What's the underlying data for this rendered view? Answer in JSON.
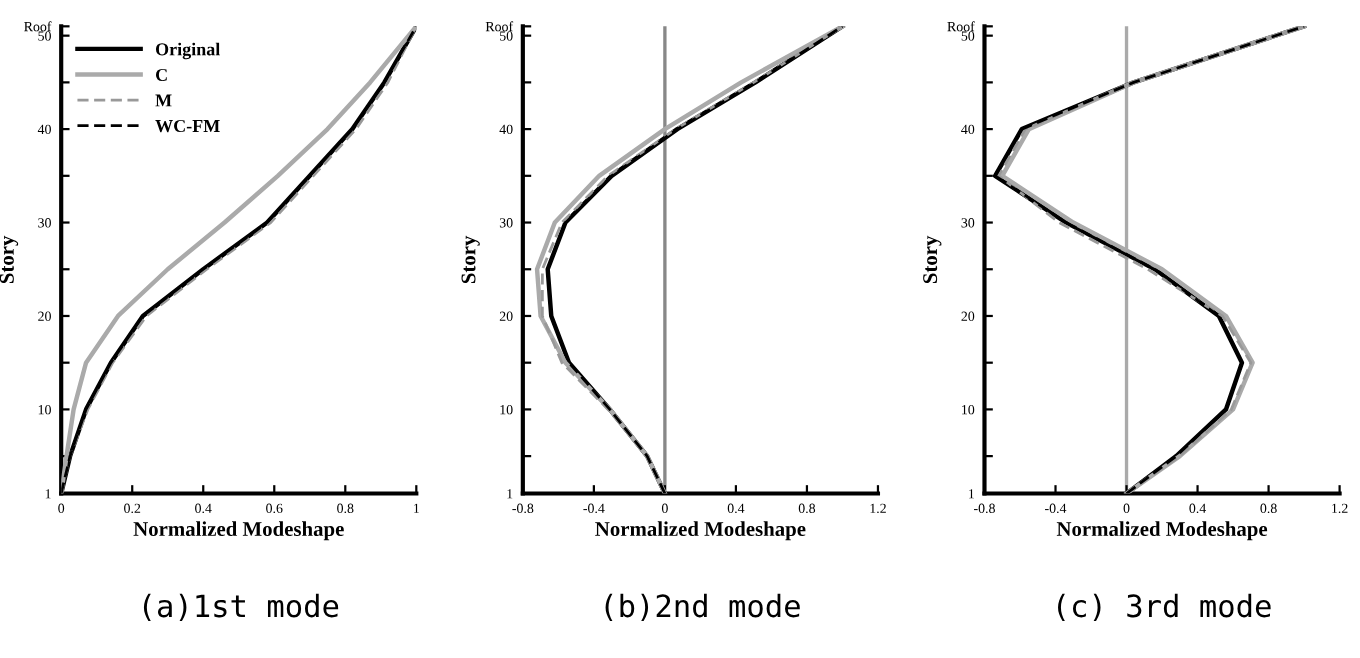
{
  "chart_data": [
    {
      "type": "line",
      "title": "(a)1st mode",
      "xlabel": "Normalized Modeshape",
      "ylabel": "Story",
      "xlim": [
        0,
        1
      ],
      "xticks": [
        0,
        0.2,
        0.4,
        0.6,
        0.8,
        1
      ],
      "ylim": [
        1,
        51
      ],
      "yticks": [
        1,
        {
          "value": 5,
          "label": null
        },
        10,
        {
          "value": 15,
          "label": null
        },
        20,
        {
          "value": 25,
          "label": null
        },
        30,
        {
          "value": 35,
          "label": null
        },
        40,
        {
          "value": 45,
          "label": null
        },
        50,
        {
          "value": 51,
          "label": "Roof"
        }
      ],
      "legend": "top left",
      "grid": false,
      "series": [
        {
          "name": "Original",
          "color": "#000000",
          "line_style": "solid",
          "x": [
            0,
            0.025,
            0.07,
            0.14,
            0.23,
            0.4,
            0.58,
            0.7,
            0.82,
            0.91,
            1
          ],
          "values": [
            1,
            5,
            10,
            15,
            20,
            25,
            30,
            35,
            40,
            45,
            51
          ]
        },
        {
          "name": "C",
          "color": "#aaaaaa",
          "line_style": "solid",
          "x": [
            0,
            0.015,
            0.035,
            0.07,
            0.16,
            0.3,
            0.46,
            0.61,
            0.75,
            0.87,
            1
          ],
          "values": [
            1,
            5,
            10,
            15,
            20,
            25,
            30,
            35,
            40,
            45,
            51
          ]
        },
        {
          "name": "M",
          "color": "#999999",
          "line_style": "dashed",
          "x": [
            0,
            0.025,
            0.075,
            0.145,
            0.24,
            0.41,
            0.59,
            0.71,
            0.83,
            0.92,
            1
          ],
          "values": [
            1,
            5,
            10,
            15,
            20,
            25,
            30,
            35,
            40,
            45,
            51
          ]
        },
        {
          "name": "WC-FM",
          "color": "#000000",
          "line_style": "dashed",
          "x": [
            0,
            0.025,
            0.07,
            0.14,
            0.23,
            0.4,
            0.58,
            0.7,
            0.82,
            0.91,
            1
          ],
          "values": [
            1,
            5,
            10,
            15,
            20,
            25,
            30,
            35,
            40,
            45,
            51
          ]
        }
      ]
    },
    {
      "type": "line",
      "title": "(b)2nd mode",
      "xlabel": "Normalized Modeshape",
      "ylabel": "Story",
      "xlim": [
        -0.8,
        1.2
      ],
      "xticks": [
        -0.8,
        -0.4,
        0,
        0.4,
        0.8,
        1.2
      ],
      "ylim": [
        1,
        51
      ],
      "yticks": [
        1,
        {
          "value": 5,
          "label": null
        },
        10,
        {
          "value": 15,
          "label": null
        },
        20,
        {
          "value": 25,
          "label": null
        },
        30,
        {
          "value": 35,
          "label": null
        },
        40,
        {
          "value": 45,
          "label": null
        },
        50,
        {
          "value": 51,
          "label": "Roof"
        }
      ],
      "grid": false,
      "ref_lines": [
        {
          "axis": "x",
          "value": 0,
          "color": "#888888"
        }
      ],
      "series": [
        {
          "color": "#000000",
          "line_style": "solid",
          "x": [
            0,
            -0.1,
            -0.31,
            -0.54,
            -0.64,
            -0.66,
            -0.56,
            -0.3,
            0.07,
            0.51,
            1
          ],
          "values": [
            1,
            5,
            10,
            15,
            20,
            25,
            30,
            35,
            40,
            45,
            51
          ]
        },
        {
          "color": "#aaaaaa",
          "line_style": "solid",
          "x": [
            0,
            -0.1,
            -0.31,
            -0.56,
            -0.7,
            -0.72,
            -0.62,
            -0.37,
            0,
            0.43,
            1
          ],
          "values": [
            1,
            5,
            10,
            15,
            20,
            25,
            30,
            35,
            40,
            45,
            51
          ]
        },
        {
          "color": "#999999",
          "line_style": "dashed",
          "x": [
            0,
            -0.1,
            -0.32,
            -0.58,
            -0.69,
            -0.69,
            -0.58,
            -0.32,
            0.06,
            0.5,
            1
          ],
          "values": [
            1,
            5,
            10,
            15,
            20,
            25,
            30,
            35,
            40,
            45,
            51
          ]
        },
        {
          "color": "#000000",
          "line_style": "dashed",
          "x": [
            0,
            -0.1,
            -0.31,
            -0.54,
            -0.64,
            -0.66,
            -0.56,
            -0.3,
            0.07,
            0.51,
            1
          ],
          "values": [
            1,
            5,
            10,
            15,
            20,
            25,
            30,
            35,
            40,
            45,
            51
          ]
        }
      ]
    },
    {
      "type": "line",
      "title": "(c) 3rd mode",
      "xlabel": "Normalized Modeshape",
      "ylabel": "Story",
      "xlim": [
        -0.8,
        1.2
      ],
      "xticks": [
        -0.8,
        -0.4,
        0,
        0.4,
        0.8,
        1.2
      ],
      "ylim": [
        1,
        51
      ],
      "yticks": [
        1,
        {
          "value": 5,
          "label": null
        },
        10,
        {
          "value": 15,
          "label": null
        },
        20,
        {
          "value": 25,
          "label": null
        },
        30,
        {
          "value": 35,
          "label": null
        },
        40,
        {
          "value": 45,
          "label": null
        },
        50,
        {
          "value": 51,
          "label": "Roof"
        }
      ],
      "grid": false,
      "ref_lines": [
        {
          "axis": "x",
          "value": 0,
          "color": "#aaaaaa"
        }
      ],
      "series": [
        {
          "color": "#000000",
          "line_style": "solid",
          "x": [
            0,
            0.28,
            0.56,
            0.65,
            0.52,
            0.16,
            -0.34,
            -0.74,
            -0.59,
            0.04,
            1
          ],
          "values": [
            1,
            5,
            10,
            15,
            20,
            25,
            30,
            35,
            40,
            45,
            51
          ]
        },
        {
          "color": "#aaaaaa",
          "line_style": "solid",
          "x": [
            0,
            0.3,
            0.6,
            0.71,
            0.56,
            0.2,
            -0.3,
            -0.7,
            -0.55,
            0.04,
            1
          ],
          "values": [
            1,
            5,
            10,
            15,
            20,
            25,
            30,
            35,
            40,
            45,
            51
          ]
        },
        {
          "color": "#999999",
          "line_style": "dashed",
          "x": [
            0,
            0.3,
            0.59,
            0.7,
            0.54,
            0.12,
            -0.38,
            -0.72,
            -0.57,
            0.04,
            1
          ],
          "values": [
            1,
            5,
            10,
            15,
            20,
            25,
            30,
            35,
            40,
            45,
            51
          ]
        },
        {
          "color": "#000000",
          "line_style": "dashed",
          "x": [
            0,
            0.28,
            0.56,
            0.65,
            0.52,
            0.16,
            -0.34,
            -0.74,
            -0.59,
            0.04,
            1
          ],
          "values": [
            1,
            5,
            10,
            15,
            20,
            25,
            30,
            35,
            40,
            45,
            51
          ]
        }
      ]
    }
  ]
}
